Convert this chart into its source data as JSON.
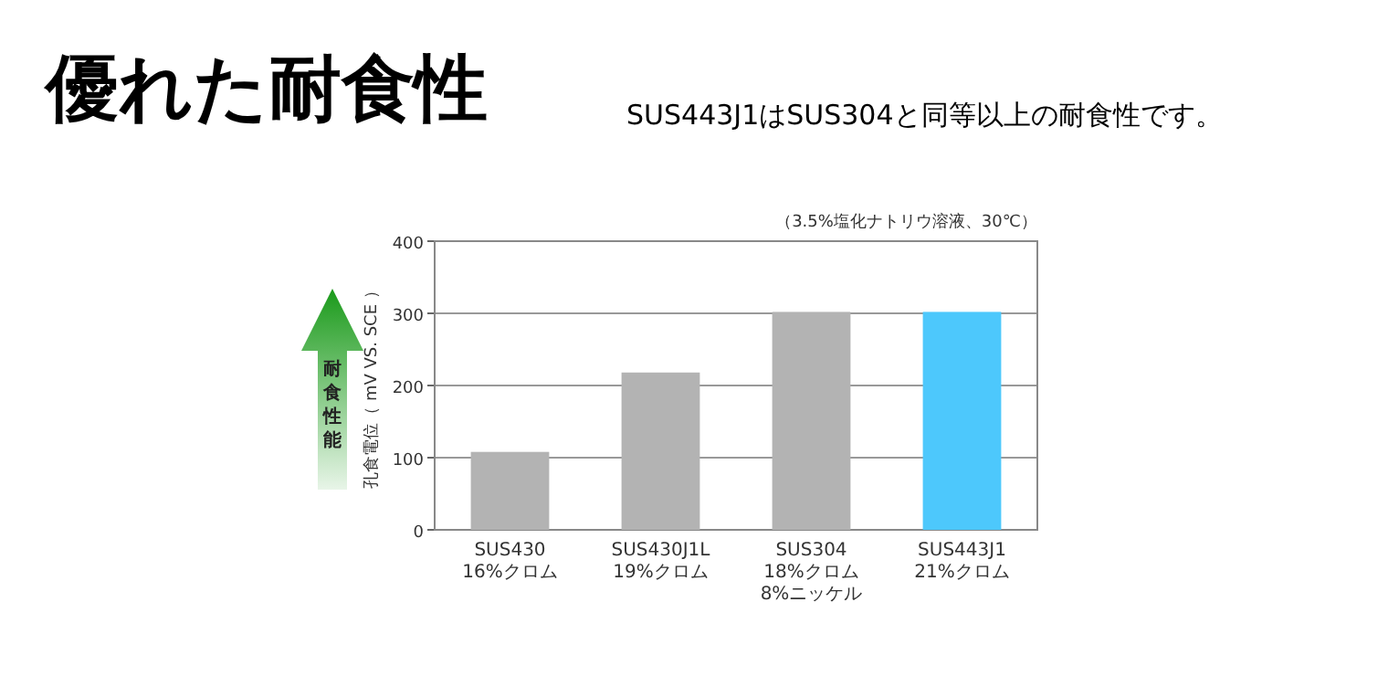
{
  "chart_data": {
    "type": "bar",
    "title": "優れた耐食性",
    "subtitle": "SUS443J1はSUS304と同等以上の耐食性です。",
    "ylabel": "孔食電位（ mV VS. SCE ）",
    "categories": [
      "SUS430\n16%クロム",
      "SUS430J1L\n19%クロム",
      "SUS304\n18%クロム\n8%ニッケル",
      "SUS443J1\n21%クロム"
    ],
    "values": [
      108,
      218,
      302,
      302
    ],
    "colors": [
      "#b3b3b3",
      "#b3b3b3",
      "#b3b3b3",
      "#4dc8fc"
    ],
    "ylim": [
      0,
      400
    ],
    "yticks": [
      0,
      100,
      200,
      300,
      400
    ],
    "grid": "y",
    "annotations": [
      "（3.5%塩化ナトリウ溶液、30℃）",
      "耐食性能"
    ]
  }
}
